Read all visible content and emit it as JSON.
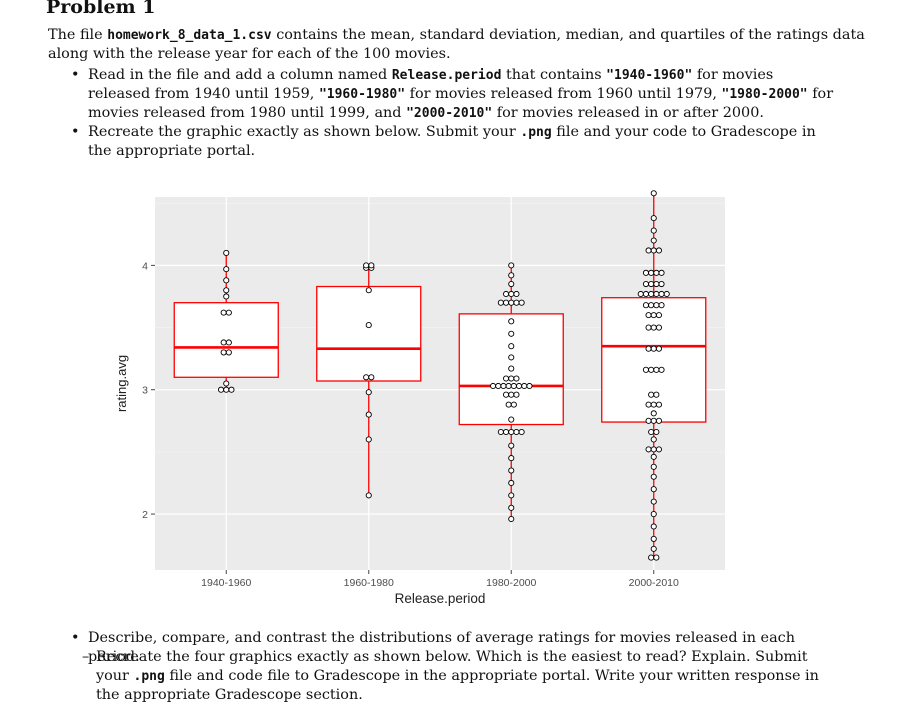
{
  "heading": "Problem 1",
  "intro": {
    "t1": "The file ",
    "file": "homework_8_data_1.csv",
    "t2": " contains the mean, standard deviation, median, and quartiles of the ratings data along with the release year for each of the 100 movies."
  },
  "bullet1": {
    "t1": "Read in the file and add a column named ",
    "col": "Release.period",
    "t2": " that contains ",
    "v1": "\"1940-1960\"",
    "t3": " for movies released from 1940 until 1959, ",
    "v2": "\"1960-1980\"",
    "t4": " for movies released from 1960 until 1979, ",
    "v3": "\"1980-2000\"",
    "t5": " for movies released from 1980 until 1999, and ",
    "v4": "\"2000-2010\"",
    "t6": " for movies released in or after 2000."
  },
  "bullet2": {
    "t1": "Recreate the graphic exactly as shown below. Submit your ",
    "ext": ".png",
    "t2": " file and your code to Gradescope in the appropriate portal."
  },
  "bullet3": {
    "text": "Describe, compare, and contrast the distributions of average ratings for movies released in each period."
  },
  "sub1": {
    "t1": "Recreate the four graphics exactly as shown below. Which is the easiest to read? Explain. Submit your ",
    "ext": ".png",
    "t2": " file and code file to Gradescope in the appropriate portal. Write your written response in the appropriate Gradescope section."
  },
  "chart_data": {
    "type": "boxplot",
    "xlabel": "Release.period",
    "ylabel": "rating.avg",
    "ylim": [
      1.55,
      4.55
    ],
    "yticks": [
      2,
      3,
      4
    ],
    "grid": true,
    "box_color": "#ff0000",
    "panel_color": "#ebebeb",
    "categories": [
      "1940-1960",
      "1960-1980",
      "1980-2000",
      "2000-2010"
    ],
    "boxes": [
      {
        "q1": 3.1,
        "median": 3.34,
        "q3": 3.7,
        "lower": 3.0,
        "upper": 4.1
      },
      {
        "q1": 3.07,
        "median": 3.33,
        "q3": 3.83,
        "lower": 2.15,
        "upper": 4.0
      },
      {
        "q1": 2.72,
        "median": 3.03,
        "q3": 3.61,
        "lower": 1.96,
        "upper": 4.0
      },
      {
        "q1": 2.74,
        "median": 3.35,
        "q3": 3.74,
        "lower": 1.65,
        "upper": 4.58
      }
    ],
    "points": [
      [
        [
          3.0,
          3
        ],
        [
          3.05,
          1
        ],
        [
          3.3,
          2
        ],
        [
          3.38,
          2
        ],
        [
          3.62,
          2
        ],
        [
          3.75,
          1
        ],
        [
          3.8,
          1
        ],
        [
          3.88,
          1
        ],
        [
          3.97,
          1
        ],
        [
          4.1,
          1
        ]
      ],
      [
        [
          3.1,
          2
        ],
        [
          3.52,
          1
        ],
        [
          2.98,
          1
        ],
        [
          2.8,
          1
        ],
        [
          2.6,
          1
        ],
        [
          2.15,
          1
        ],
        [
          3.8,
          1
        ],
        [
          3.98,
          2
        ],
        [
          4.0,
          2
        ]
      ],
      [
        [
          1.96,
          1
        ],
        [
          2.05,
          1
        ],
        [
          2.15,
          1
        ],
        [
          2.25,
          1
        ],
        [
          2.35,
          1
        ],
        [
          2.45,
          1
        ],
        [
          2.55,
          1
        ],
        [
          2.66,
          5
        ],
        [
          2.76,
          1
        ],
        [
          2.88,
          2
        ],
        [
          2.96,
          3
        ],
        [
          3.03,
          8
        ],
        [
          3.09,
          3
        ],
        [
          3.17,
          1
        ],
        [
          3.26,
          1
        ],
        [
          3.35,
          1
        ],
        [
          3.45,
          1
        ],
        [
          3.55,
          1
        ],
        [
          3.7,
          5
        ],
        [
          3.77,
          3
        ],
        [
          3.85,
          1
        ],
        [
          3.92,
          1
        ],
        [
          4.0,
          1
        ]
      ],
      [
        [
          1.65,
          2
        ],
        [
          1.72,
          1
        ],
        [
          1.8,
          1
        ],
        [
          1.9,
          1
        ],
        [
          2.0,
          1
        ],
        [
          2.1,
          1
        ],
        [
          2.2,
          1
        ],
        [
          2.3,
          1
        ],
        [
          2.38,
          1
        ],
        [
          2.46,
          1
        ],
        [
          2.52,
          3
        ],
        [
          2.6,
          1
        ],
        [
          2.66,
          2
        ],
        [
          2.75,
          3
        ],
        [
          2.81,
          1
        ],
        [
          2.88,
          3
        ],
        [
          2.96,
          2
        ],
        [
          3.16,
          4
        ],
        [
          3.33,
          3
        ],
        [
          3.5,
          3
        ],
        [
          3.6,
          3
        ],
        [
          3.68,
          4
        ],
        [
          3.77,
          6
        ],
        [
          3.85,
          4
        ],
        [
          3.94,
          4
        ],
        [
          4.12,
          3
        ],
        [
          4.2,
          1
        ],
        [
          4.28,
          1
        ],
        [
          4.38,
          1
        ],
        [
          4.58,
          1
        ]
      ]
    ]
  }
}
